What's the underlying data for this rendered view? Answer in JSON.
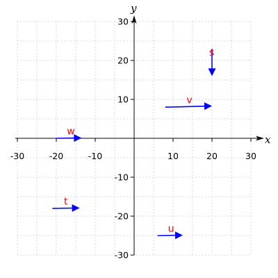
{
  "chart_data": {
    "type": "vector-plot",
    "xlabel": "x",
    "ylabel": "y",
    "xlim": [
      -30,
      30
    ],
    "ylim": [
      -30,
      30
    ],
    "x_ticks": [
      -30,
      -20,
      -10,
      10,
      20,
      30
    ],
    "y_ticks": [
      -30,
      -20,
      -10,
      10,
      20,
      30
    ],
    "grid": true,
    "vector_color": "#0000ff",
    "label_color": "#ff0000",
    "vectors": [
      {
        "label": "s",
        "x": 20,
        "y": 23,
        "dx": 0,
        "dy": -7
      },
      {
        "label": "v",
        "x": 8,
        "y": 8,
        "dx": 12,
        "dy": 0.3
      },
      {
        "label": "w",
        "x": -20,
        "y": 0,
        "dx": 6.5,
        "dy": 0.1
      },
      {
        "label": "t",
        "x": -21,
        "y": -18,
        "dx": 7,
        "dy": 0.1
      },
      {
        "label": "u",
        "x": 6,
        "y": -25,
        "dx": 6.5,
        "dy": 0.1
      }
    ]
  }
}
